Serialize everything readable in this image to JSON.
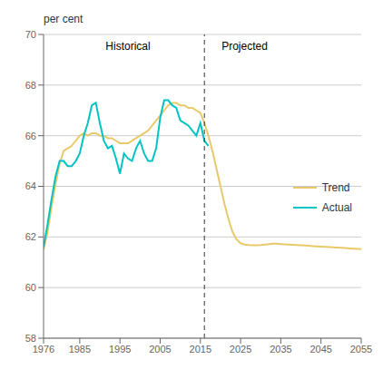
{
  "chart_data": {
    "type": "line",
    "ylabel": "per cent",
    "xlim": [
      1976,
      2055
    ],
    "ylim": [
      58,
      70
    ],
    "xticks": [
      1976,
      1985,
      1995,
      2005,
      2015,
      2025,
      2035,
      2045,
      2055
    ],
    "yticks": [
      58,
      60,
      62,
      64,
      66,
      68,
      70
    ],
    "grid": true,
    "legend": "right",
    "series": [
      {
        "name": "Trend",
        "color": "#E8C96A",
        "x": [
          1976,
          1977,
          1978,
          1979,
          1980,
          1981,
          1982,
          1983,
          1984,
          1985,
          1986,
          1987,
          1988,
          1989,
          1990,
          1991,
          1992,
          1993,
          1994,
          1995,
          1996,
          1997,
          1998,
          1999,
          2000,
          2001,
          2002,
          2003,
          2004,
          2005,
          2006,
          2007,
          2008,
          2009,
          2010,
          2011,
          2012,
          2013,
          2014,
          2015,
          2016,
          2017,
          2018,
          2019,
          2020,
          2021,
          2022,
          2023,
          2024,
          2025,
          2026,
          2027,
          2028,
          2029,
          2030,
          2031,
          2032,
          2033,
          2034,
          2035,
          2036,
          2037,
          2038,
          2039,
          2040,
          2041,
          2042,
          2043,
          2044,
          2045,
          2046,
          2047,
          2048,
          2049,
          2050,
          2051,
          2052,
          2053,
          2054,
          2055
        ],
        "values": [
          61.5,
          62.2,
          63.2,
          64.1,
          64.9,
          65.4,
          65.5,
          65.6,
          65.8,
          66.0,
          66.1,
          66.0,
          66.1,
          66.1,
          66.0,
          66.0,
          65.9,
          65.9,
          65.8,
          65.7,
          65.7,
          65.7,
          65.8,
          65.9,
          66.0,
          66.1,
          66.2,
          66.4,
          66.6,
          66.8,
          67.0,
          67.2,
          67.3,
          67.3,
          67.2,
          67.2,
          67.1,
          67.1,
          67.0,
          66.9,
          66.5,
          66.0,
          65.4,
          64.7,
          64.0,
          63.3,
          62.7,
          62.2,
          61.9,
          61.75,
          61.7,
          61.68,
          61.67,
          61.67,
          61.68,
          61.7,
          61.72,
          61.73,
          61.73,
          61.72,
          61.71,
          61.7,
          61.69,
          61.68,
          61.67,
          61.66,
          61.65,
          61.64,
          61.63,
          61.62,
          61.61,
          61.6,
          61.59,
          61.58,
          61.57,
          61.56,
          61.55,
          61.54,
          61.53,
          61.52
        ]
      },
      {
        "name": "Actual",
        "color": "#00C4C4",
        "x": [
          1976,
          1977,
          1978,
          1979,
          1980,
          1981,
          1982,
          1983,
          1984,
          1985,
          1986,
          1987,
          1988,
          1989,
          1990,
          1991,
          1992,
          1993,
          1994,
          1995,
          1996,
          1997,
          1998,
          1999,
          2000,
          2001,
          2002,
          2003,
          2004,
          2005,
          2006,
          2007,
          2008,
          2009,
          2010,
          2011,
          2012,
          2013,
          2014,
          2015,
          2016,
          2017
        ],
        "values": [
          61.6,
          62.5,
          63.5,
          64.4,
          65.0,
          65.0,
          64.8,
          64.8,
          65.0,
          65.3,
          66.0,
          66.5,
          67.2,
          67.3,
          66.5,
          65.8,
          65.5,
          65.6,
          65.1,
          64.5,
          65.3,
          65.1,
          65.0,
          65.5,
          65.8,
          65.3,
          65.0,
          65.0,
          65.5,
          66.7,
          67.4,
          67.4,
          67.2,
          67.1,
          66.6,
          66.5,
          66.4,
          66.2,
          66.0,
          66.5,
          65.8,
          65.6
        ]
      }
    ],
    "vline": {
      "x": 2016,
      "line_style": "dashed"
    },
    "annotations": [
      {
        "text": "Historical",
        "x": 1997,
        "y": 69.2
      },
      {
        "text": "Projected",
        "x": 2026,
        "y": 69.2
      }
    ]
  }
}
